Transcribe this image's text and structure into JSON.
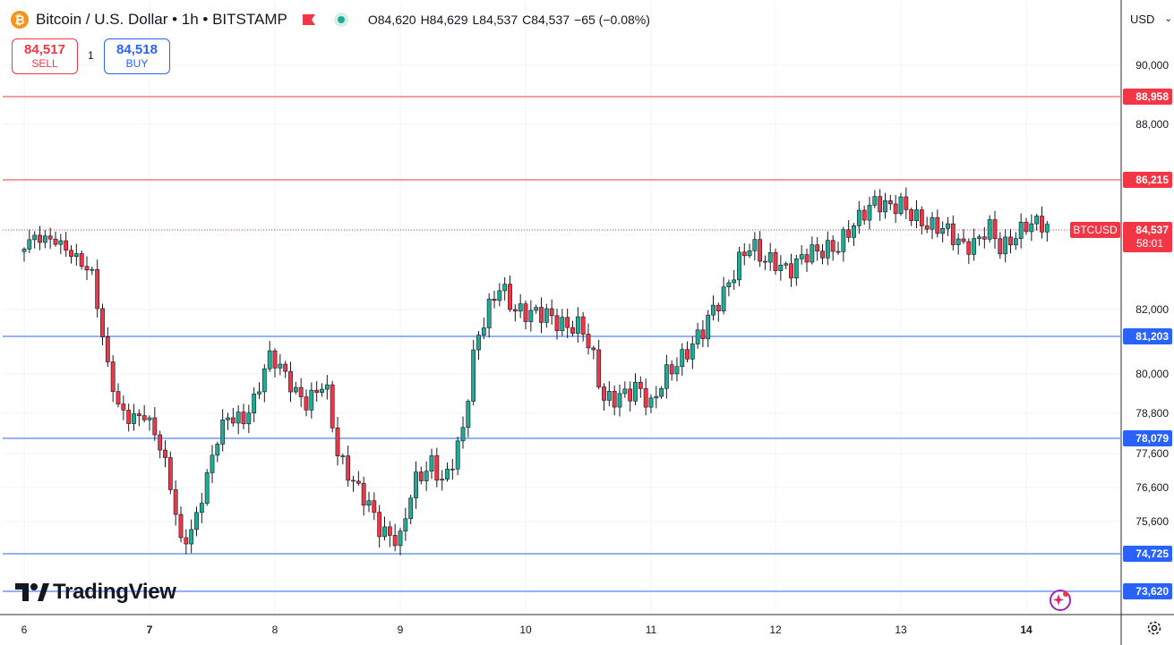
{
  "header": {
    "coin_symbol": "₿",
    "title": "Bitcoin / U.S. Dollar • 1h • BITSTAMP",
    "open": "O84,620",
    "high": "H84,629",
    "low": "L84,537",
    "close": "C84,537",
    "change": "−65 (−0.08%)"
  },
  "trade": {
    "sell_price": "84,517",
    "sell_label": "SELL",
    "quantity": "1",
    "buy_price": "84,518",
    "buy_label": "BUY"
  },
  "currency": "USD",
  "brand": "TradingView",
  "colors": {
    "up": "#22ab94",
    "down": "#f23645",
    "resistance": "#f23645",
    "support": "#2962ff",
    "current_price": "#f23645"
  },
  "icons": [
    "bitcoin-coin-icon",
    "flag-icon",
    "market-open-icon",
    "settings-gear-icon",
    "sparkle-icon",
    "tradingview-logo-icon"
  ],
  "chart_data": {
    "type": "candlestick",
    "symbol": "BTCUSD",
    "interval": "1h",
    "x_tick_labels": [
      "6",
      "7",
      "8",
      "9",
      "10",
      "11",
      "12",
      "13",
      "14"
    ],
    "y_tick_labels": [
      {
        "value": 90000,
        "label": "90,000"
      },
      {
        "value": 88000,
        "label": "88,000"
      },
      {
        "value": 82000,
        "label": "82,000"
      },
      {
        "value": 80000,
        "label": "80,000"
      },
      {
        "value": 78800,
        "label": "78,800"
      },
      {
        "value": 77600,
        "label": "77,600"
      },
      {
        "value": 76600,
        "label": "76,600"
      },
      {
        "value": 75600,
        "label": "75,600"
      }
    ],
    "horizontal_levels": [
      {
        "value": 88958,
        "label": "88,958",
        "kind": "resistance"
      },
      {
        "value": 86215,
        "label": "86,215",
        "kind": "resistance"
      },
      {
        "value": 81203,
        "label": "81,203",
        "kind": "support"
      },
      {
        "value": 78079,
        "label": "78,079",
        "kind": "support"
      },
      {
        "value": 74725,
        "label": "74,725",
        "kind": "support"
      },
      {
        "value": 73620,
        "label": "73,620",
        "kind": "support"
      }
    ],
    "current_price": {
      "value": 84537,
      "label": "84,537",
      "symbol_tag": "BTCUSD",
      "countdown": "58:01"
    },
    "y_range": [
      73200,
      91500
    ],
    "close_path": [
      [
        6.0,
        84050
      ],
      [
        6.08,
        84300
      ],
      [
        6.25,
        84200
      ],
      [
        6.4,
        83700
      ],
      [
        6.55,
        83100
      ],
      [
        6.6,
        81700
      ],
      [
        6.67,
        80200
      ],
      [
        6.75,
        79000
      ],
      [
        6.85,
        78600
      ],
      [
        6.95,
        78800
      ],
      [
        7.05,
        78200
      ],
      [
        7.15,
        77000
      ],
      [
        7.25,
        75000
      ],
      [
        7.35,
        75400
      ],
      [
        7.45,
        76800
      ],
      [
        7.55,
        78200
      ],
      [
        7.62,
        78700
      ],
      [
        7.75,
        78600
      ],
      [
        7.85,
        79300
      ],
      [
        7.95,
        80600
      ],
      [
        8.05,
        80200
      ],
      [
        8.15,
        79500
      ],
      [
        8.25,
        79100
      ],
      [
        8.4,
        79800
      ],
      [
        8.5,
        77600
      ],
      [
        8.6,
        76900
      ],
      [
        8.75,
        76100
      ],
      [
        8.85,
        75300
      ],
      [
        9.0,
        75100
      ],
      [
        9.1,
        76700
      ],
      [
        9.25,
        77300
      ],
      [
        9.35,
        76700
      ],
      [
        9.5,
        78300
      ],
      [
        9.6,
        81000
      ],
      [
        9.7,
        82000
      ],
      [
        9.8,
        82800
      ],
      [
        9.9,
        82000
      ],
      [
        10.0,
        81900
      ],
      [
        10.15,
        81900
      ],
      [
        10.3,
        81500
      ],
      [
        10.45,
        81500
      ],
      [
        10.55,
        80400
      ],
      [
        10.62,
        79200
      ],
      [
        10.75,
        79300
      ],
      [
        10.9,
        79600
      ],
      [
        11.0,
        79000
      ],
      [
        11.1,
        79900
      ],
      [
        11.25,
        80500
      ],
      [
        11.4,
        81300
      ],
      [
        11.5,
        82000
      ],
      [
        11.6,
        82600
      ],
      [
        11.7,
        83500
      ],
      [
        11.8,
        84100
      ],
      [
        11.9,
        83600
      ],
      [
        12.0,
        83500
      ],
      [
        12.1,
        83200
      ],
      [
        12.25,
        83800
      ],
      [
        12.4,
        83900
      ],
      [
        12.5,
        84000
      ],
      [
        12.6,
        84600
      ],
      [
        12.7,
        85100
      ],
      [
        12.8,
        85500
      ],
      [
        12.9,
        85300
      ],
      [
        13.0,
        85400
      ],
      [
        13.1,
        85000
      ],
      [
        13.2,
        84700
      ],
      [
        13.35,
        84600
      ],
      [
        13.5,
        84000
      ],
      [
        13.6,
        84100
      ],
      [
        13.7,
        84700
      ],
      [
        13.8,
        83900
      ],
      [
        13.9,
        84300
      ],
      [
        14.0,
        84700
      ],
      [
        14.1,
        84800
      ],
      [
        14.2,
        84537
      ]
    ]
  }
}
